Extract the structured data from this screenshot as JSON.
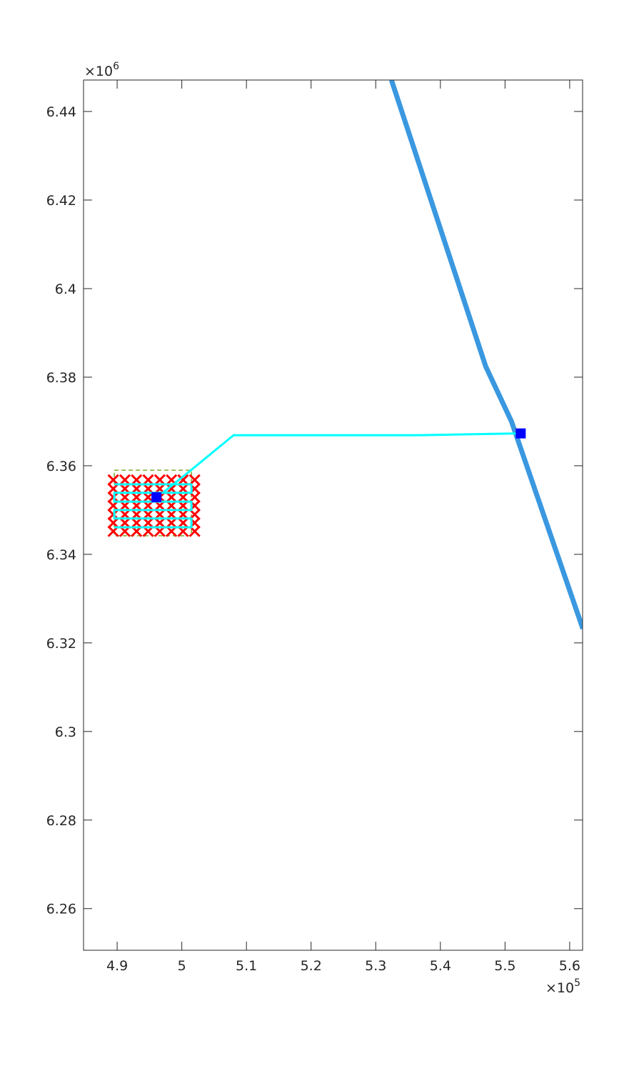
{
  "chart_data": {
    "type": "line",
    "xlim": [
      4.848,
      5.62
    ],
    "ylim": [
      6.2506,
      6.4471
    ],
    "xticks": [
      4.9,
      5,
      5.1,
      5.2,
      5.3,
      5.4,
      5.5,
      5.6
    ],
    "yticks": [
      6.26,
      6.28,
      6.3,
      6.32,
      6.34,
      6.36,
      6.38,
      6.4,
      6.42,
      6.44
    ],
    "x_multiplier": {
      "base": "×10",
      "exponent": "5"
    },
    "y_multiplier": {
      "base": "×10",
      "exponent": "6"
    },
    "grid": false,
    "series": [
      {
        "style": "line",
        "color": "#3a98e0",
        "width": 7,
        "x": [
          5.3243,
          5.4702,
          5.51,
          5.6204
        ],
        "y": [
          6.4471,
          6.3824,
          6.37,
          6.3232
        ]
      },
      {
        "style": "line",
        "color": "#77ac30",
        "width": 1.5,
        "dashed": true,
        "x": [
          4.8956,
          5.0149,
          5.0149,
          4.8956,
          4.8956
        ],
        "y": [
          6.359,
          6.359,
          6.3442,
          6.3442,
          6.359
        ]
      },
      {
        "style": "scatter",
        "marker": "x",
        "color": "#ff0000",
        "x": [
          4.894,
          4.912,
          4.93,
          4.948,
          4.966,
          4.984,
          5.002,
          5.02,
          4.894,
          4.912,
          4.93,
          4.948,
          4.966,
          4.984,
          5.002,
          5.02,
          4.894,
          4.912,
          4.93,
          4.948,
          4.966,
          4.984,
          5.002,
          5.02,
          4.894,
          4.912,
          4.93,
          4.948,
          4.966,
          4.984,
          5.002,
          5.02,
          4.894,
          4.912,
          4.93,
          4.948,
          4.966,
          4.984,
          5.002,
          5.02,
          4.894,
          4.912,
          4.93,
          4.948,
          4.966,
          4.984,
          5.002,
          5.02,
          4.894,
          4.912,
          4.93,
          4.948,
          4.966,
          4.984,
          5.002,
          5.02
        ],
        "y": [
          6.3568,
          6.3568,
          6.3568,
          6.3568,
          6.3568,
          6.3568,
          6.3568,
          6.3568,
          6.3548,
          6.3548,
          6.3548,
          6.3548,
          6.3548,
          6.3548,
          6.3548,
          6.3548,
          6.3529,
          6.3529,
          6.3529,
          6.3529,
          6.3529,
          6.3529,
          6.3529,
          6.3529,
          6.351,
          6.351,
          6.351,
          6.351,
          6.351,
          6.351,
          6.351,
          6.351,
          6.349,
          6.349,
          6.349,
          6.349,
          6.349,
          6.349,
          6.349,
          6.349,
          6.3471,
          6.3471,
          6.3471,
          6.3471,
          6.3471,
          6.3471,
          6.3471,
          6.3471,
          6.3452,
          6.3452,
          6.3452,
          6.3452,
          6.3452,
          6.3452,
          6.3452,
          6.3452
        ]
      },
      {
        "style": "line",
        "color": "#00ffff",
        "width": 3,
        "x": [
          4.8956,
          5.0149,
          5.0149,
          4.8956,
          4.8956,
          5.0149,
          5.0149,
          4.8956,
          4.8956,
          5.0149,
          5.0149,
          4.8956
        ],
        "y": [
          6.3558,
          6.3558,
          6.3539,
          6.3539,
          6.3519,
          6.3519,
          6.35,
          6.35,
          6.3481,
          6.3481,
          6.3461,
          6.3461
        ]
      },
      {
        "style": "line",
        "color": "#00ffff",
        "width": 3,
        "x": [
          4.9707,
          5.0116,
          5.0801,
          5.3685,
          5.5199
        ],
        "y": [
          6.3539,
          6.3587,
          6.3669,
          6.3669,
          6.3673
        ]
      },
      {
        "style": "scatter",
        "marker": "square",
        "color": "#0000ff",
        "x": [
          4.9608,
          5.5243
        ],
        "y": [
          6.3529,
          6.3673
        ]
      }
    ]
  }
}
